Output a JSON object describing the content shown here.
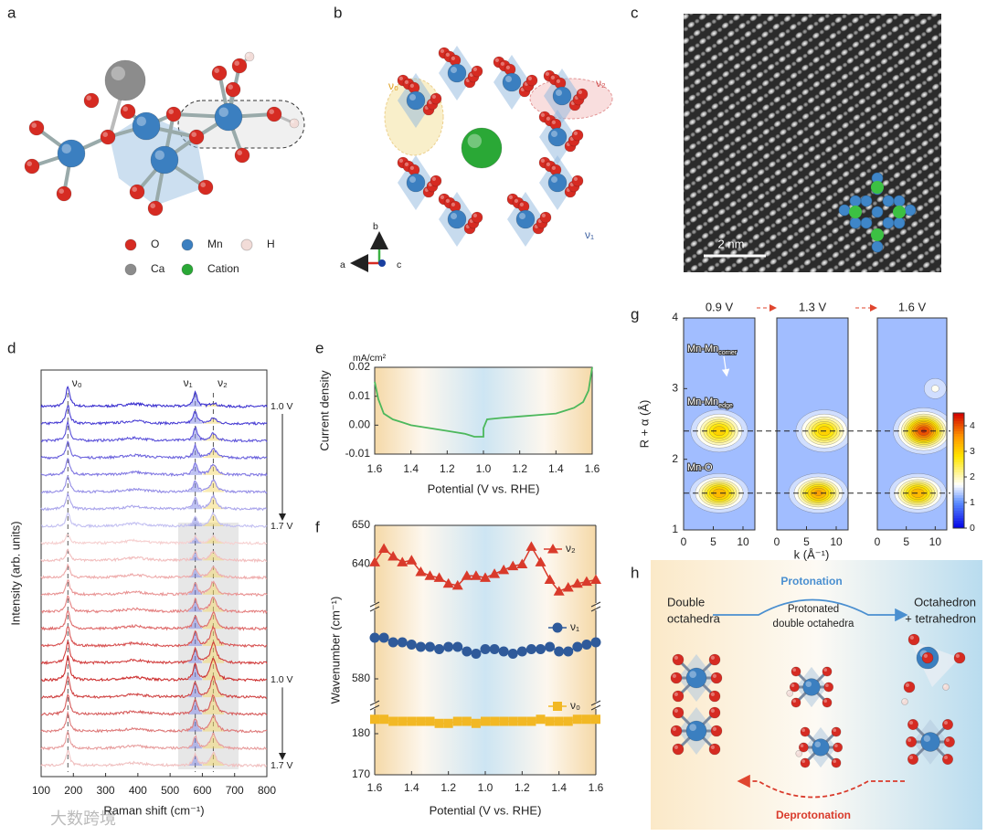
{
  "panel_labels": [
    "a",
    "b",
    "c",
    "d",
    "e",
    "f",
    "g",
    "h"
  ],
  "a": {
    "legend": [
      {
        "label": "O",
        "color": "#d62b22"
      },
      {
        "label": "Mn",
        "color": "#3b7fc0"
      },
      {
        "label": "H",
        "color": "#f2dcd8"
      },
      {
        "label": "Ca",
        "color": "#8c8c8c"
      },
      {
        "label": "Cation",
        "color": "#2aa836"
      }
    ]
  },
  "b": {
    "labels": [
      "ν₀",
      "ν₂",
      "ν₁"
    ],
    "axes": [
      "b",
      "a",
      "c"
    ]
  },
  "c": {
    "scale_bar": "2 nm"
  },
  "h": {
    "left_title": [
      "Double",
      "octahedra"
    ],
    "middle_title": [
      "Protonated",
      "double octahedra"
    ],
    "right_title": [
      "Octahedron",
      "+ tetrahedron"
    ],
    "protonation": "Protonation",
    "deprotonation": "Deprotonation"
  },
  "watermark": "大数跨境",
  "chart_data": [
    {
      "type": "spectra",
      "xlabel": "Raman shift (cm⁻¹)",
      "ylabel": "Intensity (arb. units)",
      "xlim": [
        100,
        800
      ],
      "xticks": [
        100,
        200,
        300,
        400,
        500,
        600,
        700,
        800
      ],
      "peaks": [
        {
          "label": "ν₀",
          "x": 183
        },
        {
          "label": "ν₁",
          "x": 578
        },
        {
          "label": "ν₂",
          "x": 634
        }
      ],
      "voltage_labels": [
        "1.0 V",
        "1.7 V",
        "1.0 V",
        "1.7 V"
      ],
      "series": [
        {
          "color": "#3a2fcf",
          "values": [
            22,
            16,
            4
          ]
        },
        {
          "color": "#4b40d4",
          "values": [
            20,
            14,
            6
          ]
        },
        {
          "color": "#5c52d9",
          "values": [
            20,
            14,
            8
          ]
        },
        {
          "color": "#6d64dd",
          "values": [
            19,
            13,
            10
          ]
        },
        {
          "color": "#8077e2",
          "values": [
            18,
            13,
            12
          ]
        },
        {
          "color": "#948de6",
          "values": [
            18,
            12,
            13
          ]
        },
        {
          "color": "#aaa5eb",
          "values": [
            17,
            12,
            14
          ]
        },
        {
          "color": "#c2bff1",
          "values": [
            15,
            10,
            14
          ]
        },
        {
          "color": "#f6d0d0",
          "values": [
            10,
            8,
            8
          ]
        },
        {
          "color": "#f2bebe",
          "values": [
            12,
            9,
            10
          ]
        },
        {
          "color": "#eeaaaa",
          "values": [
            14,
            10,
            12
          ]
        },
        {
          "color": "#e99595",
          "values": [
            16,
            12,
            14
          ]
        },
        {
          "color": "#e48080",
          "values": [
            18,
            13,
            16
          ]
        },
        {
          "color": "#de6a6a",
          "values": [
            20,
            14,
            18
          ]
        },
        {
          "color": "#d85454",
          "values": [
            22,
            15,
            20
          ]
        },
        {
          "color": "#d23f3f",
          "values": [
            24,
            16,
            22
          ]
        },
        {
          "color": "#cd3030",
          "values": [
            26,
            17,
            24
          ]
        },
        {
          "color": "#d04444",
          "values": [
            24,
            16,
            22
          ]
        },
        {
          "color": "#d65c5c",
          "values": [
            22,
            15,
            20
          ]
        },
        {
          "color": "#de7a7a",
          "values": [
            20,
            14,
            18
          ]
        },
        {
          "color": "#e79c9c",
          "values": [
            18,
            13,
            16
          ]
        },
        {
          "color": "#f0c0c0",
          "values": [
            16,
            12,
            14
          ]
        }
      ]
    },
    {
      "type": "line",
      "unit": "mA/cm²",
      "ylabel": "Current density",
      "xlabel": "Potential (V vs. RHE)",
      "xlim": [
        0,
        1.2
      ],
      "xticks": [
        {
          "value": 0,
          "label": "1.6"
        },
        {
          "value": 0.2,
          "label": "1.4"
        },
        {
          "value": 0.4,
          "label": "1.2"
        },
        {
          "value": 0.6,
          "label": "1.0"
        },
        {
          "value": 0.8,
          "label": "1.2"
        },
        {
          "value": 1.0,
          "label": "1.4"
        },
        {
          "value": 1.2,
          "label": "1.6"
        }
      ],
      "ylim": [
        -0.01,
        0.02
      ],
      "yticks": [
        -0.01,
        {
          "value": 0,
          "label": "0.00"
        },
        0.01,
        0.02
      ],
      "color": "#4cb85c",
      "x": [
        0,
        0.02,
        0.05,
        0.1,
        0.15,
        0.2,
        0.3,
        0.4,
        0.5,
        0.55,
        0.6,
        0.6,
        0.62,
        0.7,
        0.8,
        0.9,
        1.0,
        1.05,
        1.1,
        1.15,
        1.18,
        1.2
      ],
      "values": [
        0.015,
        0.009,
        0.004,
        0.002,
        0.001,
        0,
        -0.001,
        -0.002,
        -0.003,
        -0.004,
        -0.004,
        -0.001,
        0.002,
        0.0025,
        0.003,
        0.0035,
        0.004,
        0.005,
        0.006,
        0.008,
        0.012,
        0.02
      ]
    },
    {
      "type": "scatter",
      "ylabel": "Wavenumber (cm⁻¹)",
      "xlabel": "Potential (V vs. RHE)",
      "xlim": [
        0,
        1.2
      ],
      "xticks": [
        {
          "value": 0,
          "label": "1.6"
        },
        {
          "value": 0.2,
          "label": "1.4"
        },
        {
          "value": 0.4,
          "label": "1.2"
        },
        {
          "value": 0.6,
          "label": "1.0"
        },
        {
          "value": 0.8,
          "label": "1.2"
        },
        {
          "value": 1.0,
          "label": "1.4"
        },
        {
          "value": 1.2,
          "label": "1.6"
        }
      ],
      "segments": [
        {
          "ylim": [
            630,
            650
          ],
          "yticks": [
            640,
            650
          ]
        },
        {
          "ylim": [
            575,
            595
          ],
          "yticks": [
            580
          ]
        },
        {
          "ylim": [
            170,
            186
          ],
          "yticks": [
            170,
            180
          ]
        }
      ],
      "x": [
        0,
        0.05,
        0.1,
        0.15,
        0.2,
        0.25,
        0.3,
        0.35,
        0.4,
        0.45,
        0.5,
        0.55,
        0.6,
        0.65,
        0.7,
        0.75,
        0.8,
        0.85,
        0.9,
        0.95,
        1.0,
        1.05,
        1.1,
        1.15,
        1.2
      ],
      "series": [
        {
          "name": "ν₂",
          "color": "#d93a2b",
          "marker": "triangle",
          "values": [
            640.5,
            644,
            642,
            640.5,
            641,
            638,
            637,
            636.5,
            635,
            634.5,
            637,
            637,
            636.5,
            637.5,
            638.5,
            639.5,
            640,
            644.5,
            640.5,
            636,
            633,
            634,
            635,
            635.5,
            636
          ]
        },
        {
          "name": "ν₁",
          "color": "#2f5a9a",
          "marker": "circle",
          "values": [
            589,
            589,
            588,
            588,
            587.5,
            587,
            587,
            586.5,
            587,
            587,
            586,
            585.5,
            586.5,
            586.5,
            586,
            585.5,
            586,
            586.5,
            586.5,
            587,
            586,
            586,
            587,
            587.5,
            588
          ]
        },
        {
          "name": "ν₀",
          "color": "#f2b824",
          "marker": "square",
          "values": [
            183.5,
            183.5,
            183,
            183,
            183,
            183,
            183,
            182.5,
            182.5,
            183,
            183,
            182.5,
            183,
            183,
            183,
            183,
            183,
            183,
            183.5,
            183,
            183,
            183,
            183.5,
            183.5,
            183.5
          ]
        }
      ]
    },
    {
      "type": "contour",
      "titles": [
        "0.9 V",
        "1.3 V",
        "1.6 V"
      ],
      "ylabel": "R + α (Å)",
      "xlabel": "k (Å⁻¹)",
      "xlim": [
        0,
        12
      ],
      "xticks": [
        0,
        5,
        10
      ],
      "ylim": [
        1,
        4
      ],
      "yticks": [
        1,
        2,
        3,
        4
      ],
      "colorbar": {
        "lim": [
          0,
          4.5
        ],
        "ticks": [
          0,
          1,
          2,
          3,
          4
        ]
      },
      "dashed_lines": [
        2.4,
        1.52
      ],
      "annotations": [
        {
          "text": "Mn-Mn",
          "sub": "corner"
        },
        {
          "text": "Mn-Mn",
          "sub": "edge"
        },
        {
          "text": "Mn-O"
        }
      ],
      "panels": [
        {
          "peaks": [
            {
              "k": 6,
              "R": 2.4,
              "value": 3.2
            },
            {
              "k": 6,
              "R": 1.52,
              "value": 3.5
            },
            {
              "k": 8,
              "R": 3.1,
              "value": 1.4
            }
          ]
        },
        {
          "peaks": [
            {
              "k": 8,
              "R": 2.4,
              "value": 3.2
            },
            {
              "k": 7,
              "R": 1.52,
              "value": 3.6
            },
            {
              "k": 8,
              "R": 3.0,
              "value": 1.5
            }
          ]
        },
        {
          "peaks": [
            {
              "k": 8,
              "R": 2.4,
              "value": 4.3
            },
            {
              "k": 7,
              "R": 1.52,
              "value": 3.5
            },
            {
              "k": 10,
              "R": 3.0,
              "value": 1.8
            }
          ]
        }
      ]
    }
  ]
}
